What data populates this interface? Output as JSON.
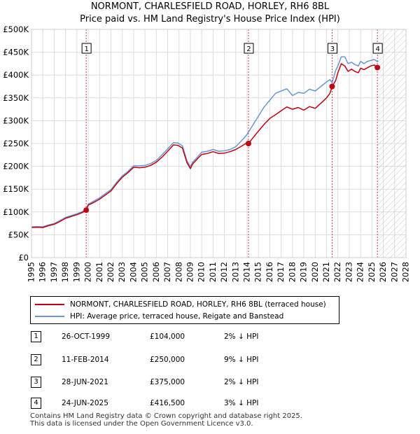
{
  "header": {
    "title_line1": "NORMONT, CHARLESFIELD ROAD, HORLEY, RH6 8BL",
    "title_line2": "Price paid vs. HM Land Registry's House Price Index (HPI)"
  },
  "colors": {
    "property": "#c00010",
    "hpi": "#6a96d6",
    "vline": "#d04040",
    "hatch": "#bbbbbb",
    "grid": "#dddddd"
  },
  "chart_data": {
    "type": "line",
    "title": "NORMONT, CHARLESFIELD ROAD, HORLEY, RH6 8BL",
    "xlabel": "",
    "ylabel": "",
    "xlim": [
      1995,
      2028
    ],
    "ylim": [
      0,
      500000
    ],
    "grid": true,
    "y_ticks": [
      {
        "value": 0,
        "label": "£0"
      },
      {
        "value": 50000,
        "label": "£50K"
      },
      {
        "value": 100000,
        "label": "£100K"
      },
      {
        "value": 150000,
        "label": "£150K"
      },
      {
        "value": 200000,
        "label": "£200K"
      },
      {
        "value": 250000,
        "label": "£250K"
      },
      {
        "value": 300000,
        "label": "£300K"
      },
      {
        "value": 350000,
        "label": "£350K"
      },
      {
        "value": 400000,
        "label": "£400K"
      },
      {
        "value": 450000,
        "label": "£450K"
      },
      {
        "value": 500000,
        "label": "£500K"
      }
    ],
    "x_ticks": [
      "1995",
      "1996",
      "1997",
      "1998",
      "1999",
      "2000",
      "2001",
      "2002",
      "2003",
      "2004",
      "2005",
      "2006",
      "2007",
      "2008",
      "2009",
      "2010",
      "2011",
      "2012",
      "2013",
      "2014",
      "2015",
      "2016",
      "2017",
      "2018",
      "2019",
      "2020",
      "2021",
      "2022",
      "2023",
      "2024",
      "2025",
      "2026",
      "2027",
      "2028"
    ],
    "projection_start": 2025.5,
    "series": [
      {
        "name": "NORMONT, CHARLESFIELD ROAD, HORLEY, RH6 8BL (terraced house)",
        "x": [
          1995.0,
          1995.5,
          1996.0,
          1996.5,
          1997.0,
          1997.5,
          1998.0,
          1998.5,
          1999.0,
          1999.5,
          1999.82,
          2000.0,
          2000.5,
          2001.0,
          2001.5,
          2002.0,
          2002.5,
          2003.0,
          2003.5,
          2004.0,
          2004.5,
          2005.0,
          2005.5,
          2006.0,
          2006.5,
          2007.0,
          2007.5,
          2007.9,
          2008.3,
          2008.7,
          2009.0,
          2009.2,
          2009.6,
          2010.0,
          2010.5,
          2011.0,
          2011.5,
          2012.0,
          2012.5,
          2013.0,
          2013.5,
          2014.0,
          2014.12,
          2014.5,
          2015.0,
          2015.5,
          2016.0,
          2016.5,
          2017.0,
          2017.5,
          2018.0,
          2018.5,
          2019.0,
          2019.5,
          2020.0,
          2020.5,
          2021.0,
          2021.3,
          2021.49,
          2021.8,
          2022.0,
          2022.3,
          2022.6,
          2022.9,
          2023.2,
          2023.5,
          2023.8,
          2024.0,
          2024.3,
          2024.6,
          2024.9,
          2025.2,
          2025.48,
          2025.55
        ],
        "values": [
          66000,
          66500,
          66000,
          70000,
          73000,
          79000,
          86000,
          90000,
          94000,
          99000,
          104000,
          115000,
          121000,
          128000,
          137000,
          146000,
          162000,
          176000,
          186000,
          198000,
          197000,
          198000,
          202000,
          209000,
          220000,
          233000,
          247000,
          246000,
          240000,
          208000,
          195000,
          205000,
          216000,
          226000,
          228000,
          232000,
          228000,
          229000,
          232000,
          237000,
          244000,
          252000,
          250000,
          262000,
          277000,
          292000,
          305000,
          313000,
          322000,
          330000,
          325000,
          329000,
          323000,
          331000,
          327000,
          338000,
          350000,
          360000,
          375000,
          388000,
          405000,
          425000,
          420000,
          408000,
          413000,
          408000,
          405000,
          415000,
          412000,
          416000,
          420000,
          422000,
          416500,
          418000
        ]
      },
      {
        "name": "HPI: Average price, terraced house, Reigate and Banstead",
        "x": [
          1995.0,
          1995.5,
          1996.0,
          1996.5,
          1997.0,
          1997.5,
          1998.0,
          1998.5,
          1999.0,
          1999.5,
          1999.82,
          2000.0,
          2000.5,
          2001.0,
          2001.5,
          2002.0,
          2002.5,
          2003.0,
          2003.5,
          2004.0,
          2004.5,
          2005.0,
          2005.5,
          2006.0,
          2006.5,
          2007.0,
          2007.5,
          2007.9,
          2008.3,
          2008.7,
          2009.0,
          2009.2,
          2009.6,
          2010.0,
          2010.5,
          2011.0,
          2011.5,
          2012.0,
          2012.5,
          2013.0,
          2013.5,
          2014.0,
          2014.12,
          2014.5,
          2015.0,
          2015.5,
          2016.0,
          2016.5,
          2017.0,
          2017.5,
          2018.0,
          2018.5,
          2019.0,
          2019.5,
          2020.0,
          2020.5,
          2021.0,
          2021.3,
          2021.49,
          2021.8,
          2022.0,
          2022.3,
          2022.6,
          2022.9,
          2023.2,
          2023.5,
          2023.8,
          2024.0,
          2024.3,
          2024.6,
          2024.9,
          2025.2,
          2025.48,
          2025.55
        ],
        "values": [
          67500,
          68000,
          67500,
          71500,
          74500,
          81000,
          88000,
          92000,
          96000,
          101000,
          106000,
          117000,
          124000,
          131000,
          140000,
          149000,
          165000,
          179000,
          189000,
          201000,
          201000,
          202000,
          206000,
          213000,
          225000,
          238000,
          252000,
          251000,
          245000,
          212000,
          199000,
          209000,
          220000,
          231000,
          233000,
          237000,
          233000,
          234000,
          237000,
          243000,
          256000,
          270000,
          275000,
          290000,
          310000,
          330000,
          345000,
          360000,
          365000,
          370000,
          355000,
          362000,
          360000,
          369000,
          365000,
          375000,
          385000,
          390000,
          383000,
          410000,
          420000,
          440000,
          440000,
          425000,
          428000,
          423000,
          420000,
          430000,
          425000,
          430000,
          432000,
          434000,
          429500,
          431000
        ]
      }
    ],
    "sales": [
      {
        "num": "1",
        "x": 1999.82,
        "value": 104000
      },
      {
        "num": "2",
        "x": 2014.12,
        "value": 250000
      },
      {
        "num": "3",
        "x": 2021.49,
        "value": 375000
      },
      {
        "num": "4",
        "x": 2025.48,
        "value": 416500
      }
    ]
  },
  "legend": {
    "property_label": "NORMONT, CHARLESFIELD ROAD, HORLEY, RH6 8BL (terraced house)",
    "hpi_label": "HPI: Average price, terraced house, Reigate and Banstead"
  },
  "transactions": [
    {
      "num": "1",
      "date": "26-OCT-1999",
      "price": "£104,000",
      "hpi": "2% ↓ HPI"
    },
    {
      "num": "2",
      "date": "11-FEB-2014",
      "price": "£250,000",
      "hpi": "9% ↓ HPI"
    },
    {
      "num": "3",
      "date": "28-JUN-2021",
      "price": "£375,000",
      "hpi": "2% ↓ HPI"
    },
    {
      "num": "4",
      "date": "24-JUN-2025",
      "price": "£416,500",
      "hpi": "3% ↓ HPI"
    }
  ],
  "footer": {
    "line1": "Contains HM Land Registry data © Crown copyright and database right 2025.",
    "line2": "This data is licensed under the Open Government Licence v3.0."
  }
}
